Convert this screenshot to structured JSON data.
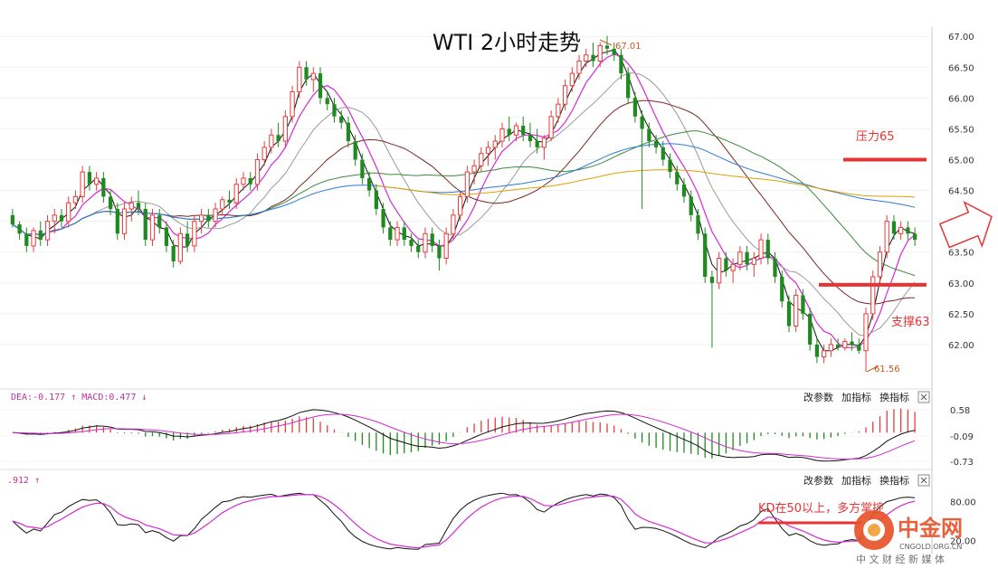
{
  "chart_data": {
    "type": "candlestick",
    "title": "WTI 2小时走势",
    "price_axis": {
      "ticks": [
        67.0,
        66.5,
        66.0,
        65.5,
        65.0,
        64.5,
        64.0,
        63.5,
        63.0,
        62.5,
        62.0
      ],
      "range": [
        61.5,
        67.15
      ]
    },
    "candles": [
      [
        64.1,
        64.2,
        63.9,
        63.95
      ],
      [
        63.95,
        64.0,
        63.7,
        63.8
      ],
      [
        63.8,
        63.9,
        63.5,
        63.6
      ],
      [
        63.6,
        63.9,
        63.5,
        63.85
      ],
      [
        63.85,
        64.0,
        63.6,
        63.7
      ],
      [
        63.7,
        64.1,
        63.6,
        64.0
      ],
      [
        64.0,
        64.2,
        63.8,
        64.1
      ],
      [
        64.1,
        64.2,
        63.9,
        64.0
      ],
      [
        64.0,
        64.4,
        63.9,
        64.3
      ],
      [
        64.3,
        64.5,
        64.2,
        64.4
      ],
      [
        64.4,
        64.9,
        64.3,
        64.8
      ],
      [
        64.8,
        64.9,
        64.5,
        64.6
      ],
      [
        64.6,
        64.8,
        64.5,
        64.7
      ],
      [
        64.7,
        64.8,
        64.3,
        64.4
      ],
      [
        64.4,
        64.5,
        64.1,
        64.2
      ],
      [
        64.2,
        64.3,
        63.7,
        63.8
      ],
      [
        63.8,
        64.3,
        63.7,
        64.2
      ],
      [
        64.2,
        64.4,
        64.0,
        64.3
      ],
      [
        64.3,
        64.5,
        64.1,
        64.2
      ],
      [
        64.2,
        64.3,
        63.6,
        63.7
      ],
      [
        63.7,
        64.2,
        63.6,
        64.1
      ],
      [
        64.1,
        64.2,
        63.8,
        63.9
      ],
      [
        63.9,
        64.0,
        63.5,
        63.6
      ],
      [
        63.6,
        63.7,
        63.25,
        63.35
      ],
      [
        63.35,
        63.9,
        63.3,
        63.8
      ],
      [
        63.8,
        64.0,
        63.5,
        63.6
      ],
      [
        63.6,
        64.1,
        63.5,
        64.0
      ],
      [
        64.0,
        64.2,
        63.8,
        64.1
      ],
      [
        64.1,
        64.2,
        63.9,
        64.0
      ],
      [
        64.0,
        64.3,
        63.9,
        64.2
      ],
      [
        64.2,
        64.4,
        64.1,
        64.35
      ],
      [
        64.35,
        64.5,
        64.2,
        64.3
      ],
      [
        64.3,
        64.7,
        64.2,
        64.6
      ],
      [
        64.6,
        64.8,
        64.5,
        64.7
      ],
      [
        64.7,
        64.8,
        64.5,
        64.6
      ],
      [
        64.6,
        65.1,
        64.5,
        65.0
      ],
      [
        65.0,
        65.3,
        64.9,
        65.2
      ],
      [
        65.2,
        65.5,
        65.1,
        65.4
      ],
      [
        65.4,
        65.6,
        65.2,
        65.3
      ],
      [
        65.3,
        65.8,
        65.2,
        65.7
      ],
      [
        65.7,
        66.2,
        65.6,
        66.1
      ],
      [
        66.1,
        66.6,
        66.0,
        66.5
      ],
      [
        66.5,
        66.6,
        66.2,
        66.3
      ],
      [
        66.3,
        66.5,
        66.1,
        66.4
      ],
      [
        66.4,
        66.5,
        65.9,
        66.0
      ],
      [
        66.0,
        66.1,
        65.8,
        65.9
      ],
      [
        65.9,
        66.0,
        65.6,
        65.7
      ],
      [
        65.7,
        65.8,
        65.5,
        65.6
      ],
      [
        65.6,
        65.7,
        65.2,
        65.3
      ],
      [
        65.3,
        65.4,
        64.9,
        65.0
      ],
      [
        65.0,
        65.1,
        64.6,
        64.7
      ],
      [
        64.7,
        64.8,
        64.4,
        64.5
      ],
      [
        64.5,
        64.6,
        64.1,
        64.2
      ],
      [
        64.2,
        64.3,
        63.8,
        63.9
      ],
      [
        63.9,
        64.0,
        63.6,
        63.7
      ],
      [
        63.7,
        64.0,
        63.6,
        63.9
      ],
      [
        63.9,
        64.0,
        63.6,
        63.7
      ],
      [
        63.7,
        63.8,
        63.5,
        63.6
      ],
      [
        63.6,
        63.7,
        63.4,
        63.5
      ],
      [
        63.5,
        63.9,
        63.4,
        63.8
      ],
      [
        63.8,
        63.9,
        63.5,
        63.6
      ],
      [
        63.6,
        63.7,
        63.2,
        63.4
      ],
      [
        63.4,
        63.9,
        63.3,
        63.8
      ],
      [
        63.8,
        64.2,
        63.7,
        64.1
      ],
      [
        64.1,
        64.5,
        64.0,
        64.4
      ],
      [
        64.4,
        64.9,
        64.3,
        64.8
      ],
      [
        64.8,
        65.0,
        64.6,
        64.9
      ],
      [
        64.9,
        65.2,
        64.8,
        65.1
      ],
      [
        65.1,
        65.3,
        64.9,
        65.2
      ],
      [
        65.2,
        65.4,
        65.0,
        65.3
      ],
      [
        65.3,
        65.6,
        65.2,
        65.5
      ],
      [
        65.5,
        65.7,
        65.3,
        65.4
      ],
      [
        65.4,
        65.6,
        65.3,
        65.55
      ],
      [
        65.55,
        65.7,
        65.3,
        65.4
      ],
      [
        65.4,
        65.6,
        65.2,
        65.3
      ],
      [
        65.3,
        65.5,
        65.1,
        65.2
      ],
      [
        65.2,
        65.4,
        65.0,
        65.35
      ],
      [
        65.35,
        65.8,
        65.3,
        65.7
      ],
      [
        65.7,
        66.0,
        65.6,
        65.9
      ],
      [
        65.9,
        66.3,
        65.8,
        66.2
      ],
      [
        66.2,
        66.5,
        66.1,
        66.4
      ],
      [
        66.4,
        66.7,
        66.3,
        66.6
      ],
      [
        66.6,
        66.8,
        66.5,
        66.7
      ],
      [
        66.7,
        66.9,
        66.5,
        66.6
      ],
      [
        66.6,
        66.9,
        66.5,
        66.85
      ],
      [
        66.85,
        67.01,
        66.7,
        66.8
      ],
      [
        66.8,
        66.9,
        66.6,
        66.7
      ],
      [
        66.7,
        66.8,
        66.3,
        66.4
      ],
      [
        66.4,
        66.5,
        65.9,
        66.0
      ],
      [
        66.0,
        66.1,
        65.6,
        65.7
      ],
      [
        65.7,
        65.8,
        64.2,
        65.5
      ],
      [
        65.5,
        65.6,
        65.2,
        65.3
      ],
      [
        65.3,
        65.4,
        65.1,
        65.2
      ],
      [
        65.2,
        65.3,
        64.9,
        65.0
      ],
      [
        65.0,
        65.1,
        64.7,
        64.8
      ],
      [
        64.8,
        64.9,
        64.5,
        64.6
      ],
      [
        64.6,
        64.7,
        64.3,
        64.4
      ],
      [
        64.4,
        64.5,
        64.0,
        64.1
      ],
      [
        64.1,
        64.2,
        63.7,
        63.8
      ],
      [
        63.8,
        63.9,
        63.0,
        63.1
      ],
      [
        63.1,
        63.2,
        61.95,
        63.0
      ],
      [
        63.0,
        63.5,
        62.9,
        63.4
      ],
      [
        63.4,
        63.5,
        63.1,
        63.2
      ],
      [
        63.2,
        63.4,
        63.0,
        63.3
      ],
      [
        63.3,
        63.6,
        63.2,
        63.5
      ],
      [
        63.5,
        63.6,
        63.2,
        63.3
      ],
      [
        63.3,
        63.5,
        63.1,
        63.4
      ],
      [
        63.4,
        63.8,
        63.3,
        63.7
      ],
      [
        63.7,
        63.8,
        63.3,
        63.4
      ],
      [
        63.4,
        63.5,
        63.0,
        63.1
      ],
      [
        63.1,
        63.2,
        62.6,
        62.7
      ],
      [
        62.7,
        62.8,
        62.2,
        62.3
      ],
      [
        62.3,
        62.9,
        62.2,
        62.8
      ],
      [
        62.8,
        62.9,
        62.4,
        62.5
      ],
      [
        62.5,
        62.6,
        61.9,
        62.0
      ],
      [
        62.0,
        62.1,
        61.7,
        61.8
      ],
      [
        61.8,
        62.0,
        61.7,
        61.9
      ],
      [
        61.9,
        62.1,
        61.8,
        62.0
      ],
      [
        62.0,
        62.1,
        61.9,
        61.95
      ],
      [
        61.95,
        62.1,
        61.9,
        62.05
      ],
      [
        62.05,
        62.2,
        61.9,
        62.0
      ],
      [
        62.0,
        62.1,
        61.85,
        61.9
      ],
      [
        61.9,
        62.6,
        61.56,
        62.5
      ],
      [
        62.5,
        63.2,
        62.4,
        63.1
      ],
      [
        63.1,
        63.6,
        63.0,
        63.5
      ],
      [
        63.5,
        64.1,
        63.4,
        64.0
      ],
      [
        64.0,
        64.1,
        63.7,
        63.8
      ],
      [
        63.8,
        64.0,
        63.7,
        63.9
      ],
      [
        63.9,
        64.0,
        63.7,
        63.8
      ],
      [
        63.8,
        63.9,
        63.6,
        63.7
      ]
    ],
    "annotations": {
      "high_label": "67.01",
      "low_label": "61.56"
    },
    "levels": [
      {
        "label": "压力65",
        "value": 65.0,
        "color": "#e83333"
      },
      {
        "label": "支撑63",
        "value": 62.97,
        "color": "#e83333"
      }
    ],
    "macd_panel": {
      "label": "DEA:-0.177 ↑ MACD:0.477 ↓",
      "ticks": [
        0.58,
        -0.09,
        -0.73
      ],
      "range": [
        -0.85,
        0.7
      ],
      "buttons": [
        "改参数",
        "加指标",
        "换指标"
      ]
    },
    "kd_panel": {
      "label": ".912 ↑",
      "ticks": [
        80.0,
        20.0
      ],
      "range": [
        0,
        100
      ],
      "buttons": [
        "改参数",
        "加指标",
        "换指标"
      ],
      "note": "KD在50以上，多方掌控"
    },
    "colors": {
      "up": "#e83c3c",
      "down": "#1f8a1f",
      "ma_black": "#111111",
      "ma_magenta": "#d22bd2",
      "ma_gray": "#9a9a9a",
      "ma_brown": "#7a2424",
      "ma_green": "#3a8a3a",
      "ma_blue": "#2b7bd6",
      "ma_orange": "#e0a000",
      "accent": "#e83333"
    }
  },
  "watermark": {
    "brand": "中金网",
    "url": "CNGOLD.ORG.CN",
    "tagline": "中 文 财 经 新 媒 体"
  }
}
